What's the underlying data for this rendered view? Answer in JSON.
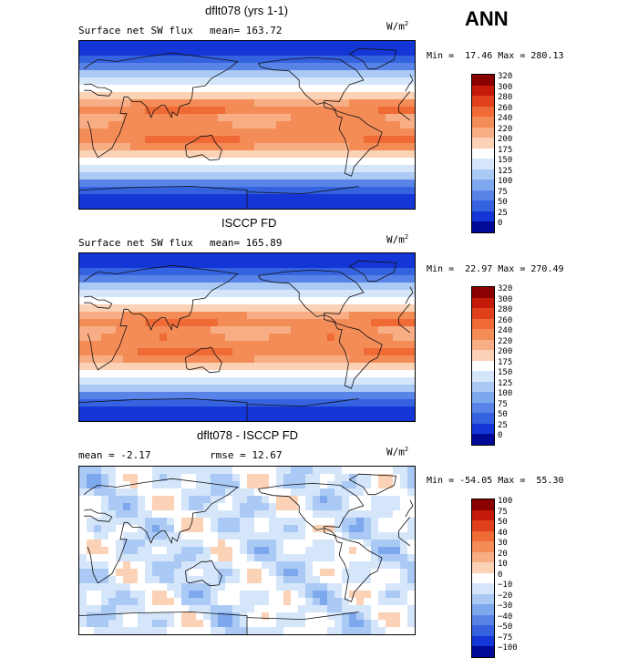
{
  "season": "ANN",
  "panels": [
    {
      "title": "dflt078 (yrs 1-1)",
      "left_label": "Surface net SW flux",
      "right_label": "mean= 163.72",
      "units": "W/m",
      "units_exp": "2",
      "min": "17.46",
      "max": "280.13",
      "minmax_text": "Min =  17.46 Max = 280.13",
      "colorbar": {
        "labels": [
          "320",
          "300",
          "280",
          "260",
          "240",
          "220",
          "200",
          "175",
          "150",
          "125",
          "100",
          "75",
          "50",
          "25",
          "0"
        ],
        "colors": [
          "#8b0000",
          "#c41a0a",
          "#e0401a",
          "#ef6a35",
          "#f48c58",
          "#f8ae85",
          "#fbd2b5",
          "#ffffff",
          "#d5e6fb",
          "#aac9f5",
          "#7ea8ee",
          "#5884e8",
          "#3563e0",
          "#1536d6",
          "#000a96"
        ]
      },
      "field": "flux"
    },
    {
      "title": "ISCCP FD",
      "left_label": "Surface net SW flux",
      "right_label": "mean= 165.89",
      "units": "W/m",
      "units_exp": "2",
      "min": "22.97",
      "max": "270.49",
      "minmax_text": "Min =  22.97 Max = 270.49",
      "colorbar": {
        "labels": [
          "320",
          "300",
          "280",
          "260",
          "240",
          "220",
          "200",
          "175",
          "150",
          "125",
          "100",
          "75",
          "50",
          "25",
          "0"
        ],
        "colors": [
          "#8b0000",
          "#c41a0a",
          "#e0401a",
          "#ef6a35",
          "#f48c58",
          "#f8ae85",
          "#fbd2b5",
          "#ffffff",
          "#d5e6fb",
          "#aac9f5",
          "#7ea8ee",
          "#5884e8",
          "#3563e0",
          "#1536d6",
          "#000a96"
        ]
      },
      "field": "flux"
    },
    {
      "title": "dflt078 - ISCCP FD",
      "left_label": "mean =  -2.17",
      "right_label": "rmse =  12.67",
      "units": "W/m",
      "units_exp": "2",
      "min": "-54.05",
      "max": "55.30",
      "minmax_text": "Min = -54.05 Max =  55.30",
      "colorbar": {
        "labels": [
          "100",
          "75",
          "50",
          "40",
          "30",
          "20",
          "10",
          "0",
          "−10",
          "−20",
          "−30",
          "−40",
          "−50",
          "−75",
          "−100"
        ],
        "colors": [
          "#8b0000",
          "#c41a0a",
          "#e0401a",
          "#ef6a35",
          "#f48c58",
          "#f8ae85",
          "#fbd2b5",
          "#ffffff",
          "#d5e6fb",
          "#aac9f5",
          "#7ea8ee",
          "#5884e8",
          "#3563e0",
          "#1536d6",
          "#000a96"
        ]
      },
      "field": "diff"
    }
  ]
}
